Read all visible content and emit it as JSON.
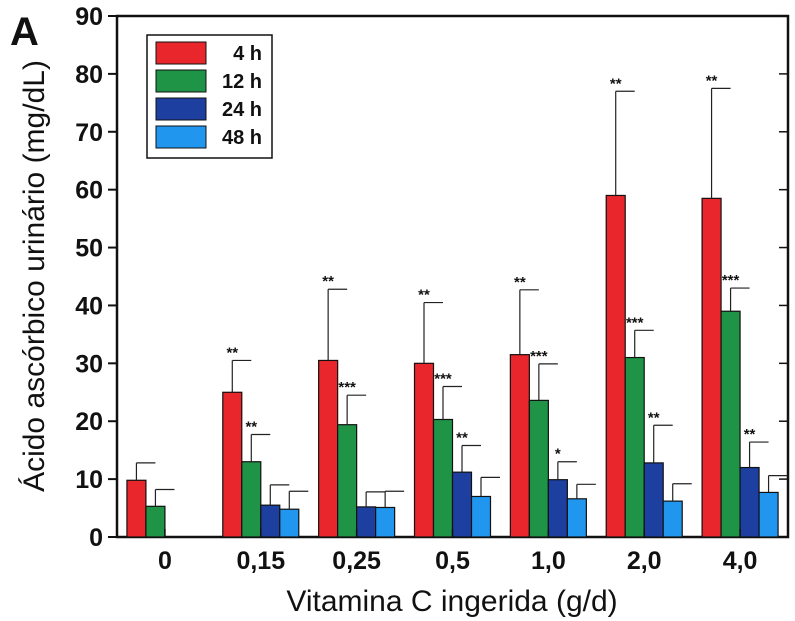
{
  "panel_label": "A",
  "chart_data": {
    "type": "bar",
    "title": "",
    "xlabel": "Vitamina C ingerida (g/d)",
    "ylabel": "Ácido ascórbico urinário (mg/dL)",
    "ylim": [
      0,
      90
    ],
    "yticks": [
      0,
      10,
      20,
      30,
      40,
      50,
      60,
      70,
      80,
      90
    ],
    "grid": false,
    "legend_position": "top-left",
    "categories": [
      "0",
      "0,15",
      "0,25",
      "0,5",
      "1,0",
      "2,0",
      "4,0"
    ],
    "series": [
      {
        "name": "4 h",
        "color": "#e8262b",
        "values": [
          9.8,
          25,
          30.5,
          30,
          31.5,
          59,
          58.5
        ],
        "errors": [
          12.8,
          30.5,
          42.8,
          40.5,
          42.7,
          77,
          77.5
        ],
        "significance": [
          "",
          "**",
          "**",
          "**",
          "**",
          "**",
          "**"
        ]
      },
      {
        "name": "12 h",
        "color": "#1f9446",
        "values": [
          5.3,
          13,
          19.4,
          20.3,
          23.6,
          31,
          39
        ],
        "errors": [
          8.2,
          17.7,
          24.5,
          26,
          29.9,
          35.7,
          43
        ],
        "significance": [
          "",
          "**",
          "***",
          "***",
          "***",
          "***",
          "***"
        ]
      },
      {
        "name": "24 h",
        "color": "#1c3fa0",
        "values": [
          null,
          5.5,
          5.2,
          11.2,
          9.9,
          12.8,
          12
        ],
        "errors": [
          null,
          9,
          7.8,
          15.8,
          13,
          19.3,
          16.4
        ],
        "significance": [
          "",
          "",
          "",
          "**",
          "*",
          "**",
          "**"
        ]
      },
      {
        "name": "48 h",
        "color": "#2196ee",
        "values": [
          null,
          4.8,
          5.1,
          7,
          6.6,
          6.2,
          7.7
        ],
        "errors": [
          null,
          7.9,
          7.9,
          10.3,
          9.1,
          9.2,
          10.6
        ],
        "significance": [
          "",
          "",
          "",
          "",
          "",
          "",
          ""
        ]
      }
    ]
  }
}
